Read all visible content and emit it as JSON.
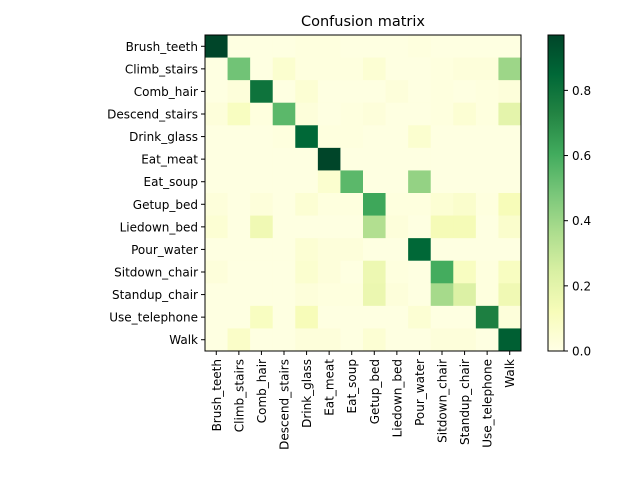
{
  "chart_data": {
    "type": "heatmap",
    "title": "Confusion matrix",
    "xlabel": "",
    "ylabel": "",
    "labels": [
      "Brush_teeth",
      "Climb_stairs",
      "Comb_hair",
      "Descend_stairs",
      "Drink_glass",
      "Eat_meat",
      "Eat_soup",
      "Getup_bed",
      "Liedown_bed",
      "Pour_water",
      "Sitdown_chair",
      "Standup_chair",
      "Use_telephone",
      "Walk"
    ],
    "colorbar": {
      "min": 0.0,
      "max": 0.97,
      "ticks": [
        "0.0",
        "0.2",
        "0.4",
        "0.6",
        "0.8"
      ],
      "tick_values": [
        0.0,
        0.2,
        0.4,
        0.6,
        0.8
      ]
    },
    "colormap": [
      "#ffffe5",
      "#f7fcb9",
      "#d9f0a3",
      "#addd8e",
      "#78c679",
      "#41ab5d",
      "#238443",
      "#006837",
      "#004529"
    ],
    "matrix": [
      [
        0.97,
        0.01,
        0.01,
        0.01,
        0.02,
        0.02,
        0.01,
        0.01,
        0.01,
        0.02,
        0.01,
        0.01,
        0.01,
        0.01
      ],
      [
        0.01,
        0.5,
        0.01,
        0.06,
        0.02,
        0.02,
        0.02,
        0.05,
        0.01,
        0.01,
        0.02,
        0.03,
        0.03,
        0.4
      ],
      [
        0.01,
        0.03,
        0.8,
        0.01,
        0.05,
        0.01,
        0.01,
        0.01,
        0.03,
        0.01,
        0.02,
        0.01,
        0.02,
        0.03
      ],
      [
        0.03,
        0.1,
        0.02,
        0.55,
        0.03,
        0.01,
        0.02,
        0.03,
        0.01,
        0.01,
        0.02,
        0.05,
        0.02,
        0.2
      ],
      [
        0.01,
        0.01,
        0.01,
        0.02,
        0.85,
        0.02,
        0.02,
        0.01,
        0.01,
        0.06,
        0.01,
        0.01,
        0.01,
        0.01
      ],
      [
        0.01,
        0.01,
        0.01,
        0.01,
        0.01,
        0.97,
        0.01,
        0.01,
        0.01,
        0.01,
        0.01,
        0.01,
        0.01,
        0.01
      ],
      [
        0.01,
        0.01,
        0.01,
        0.01,
        0.01,
        0.06,
        0.55,
        0.01,
        0.01,
        0.42,
        0.01,
        0.01,
        0.01,
        0.01
      ],
      [
        0.03,
        0.01,
        0.03,
        0.01,
        0.05,
        0.02,
        0.02,
        0.62,
        0.02,
        0.02,
        0.05,
        0.07,
        0.02,
        0.12
      ],
      [
        0.05,
        0.01,
        0.15,
        0.01,
        0.01,
        0.01,
        0.01,
        0.35,
        0.03,
        0.01,
        0.13,
        0.13,
        0.01,
        0.07
      ],
      [
        0.01,
        0.01,
        0.01,
        0.01,
        0.05,
        0.03,
        0.03,
        0.01,
        0.01,
        0.85,
        0.01,
        0.01,
        0.01,
        0.01
      ],
      [
        0.03,
        0.01,
        0.01,
        0.01,
        0.06,
        0.03,
        0.01,
        0.16,
        0.02,
        0.01,
        0.6,
        0.1,
        0.02,
        0.1
      ],
      [
        0.01,
        0.01,
        0.01,
        0.01,
        0.03,
        0.02,
        0.02,
        0.17,
        0.03,
        0.01,
        0.38,
        0.23,
        0.02,
        0.15
      ],
      [
        0.01,
        0.01,
        0.1,
        0.01,
        0.12,
        0.01,
        0.01,
        0.01,
        0.01,
        0.05,
        0.01,
        0.01,
        0.75,
        0.03
      ],
      [
        0.01,
        0.08,
        0.01,
        0.01,
        0.03,
        0.03,
        0.01,
        0.05,
        0.01,
        0.01,
        0.03,
        0.03,
        0.01,
        0.88
      ]
    ]
  }
}
